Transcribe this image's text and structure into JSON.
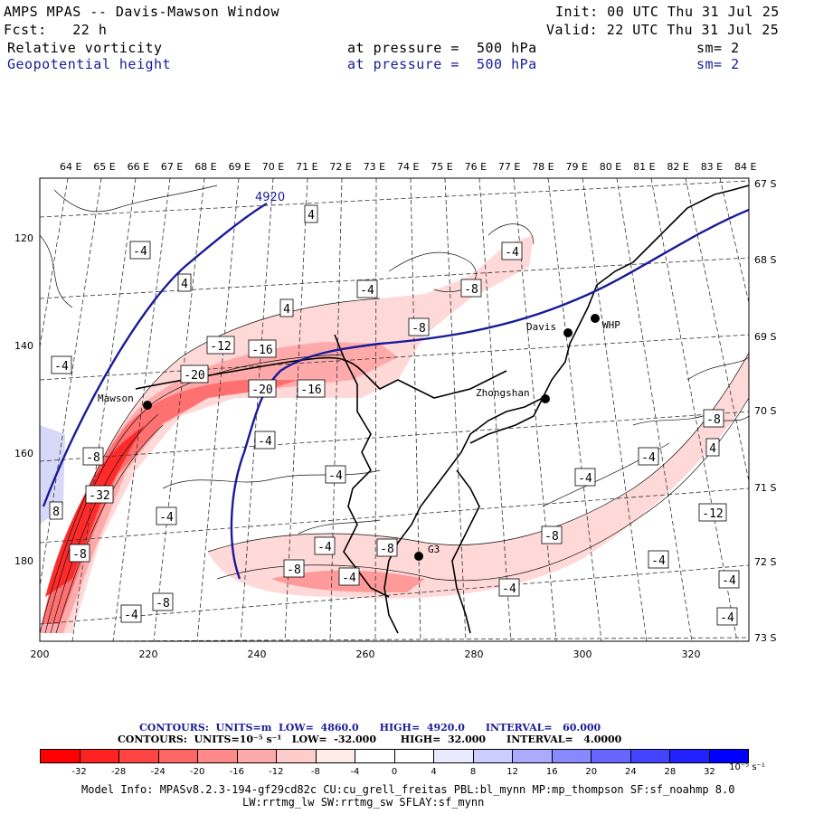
{
  "header": {
    "title": "AMPS MPAS -- Davis-Mawson Window",
    "forecast": "Fcst:   22 h",
    "init": "Init: 00 UTC Thu 31 Jul 25",
    "valid": "Valid: 22 UTC Thu 31 Jul 25",
    "field1": {
      "name": "Relative vorticity",
      "level": "at pressure =  500 hPa",
      "sm": "sm= 2"
    },
    "field2": {
      "name": "Geopotential height",
      "level": "at pressure =  500 hPa",
      "sm": "sm= 2"
    }
  },
  "axes": {
    "lon_labels": [
      "64 E",
      "65 E",
      "66 E",
      "67 E",
      "68 E",
      "69 E",
      "70 E",
      "71 E",
      "72 E",
      "73 E",
      "74 E",
      "75 E",
      "76 E",
      "77 E",
      "78 E",
      "79 E",
      "80 E",
      "81 E",
      "82 E",
      "83 E",
      "84 E"
    ],
    "lat_labels": [
      "67 S",
      "68 S",
      "69 S",
      "70 S",
      "71 S",
      "72 S",
      "73 S"
    ],
    "x_ticks": [
      "200",
      "220",
      "240",
      "260",
      "280",
      "300",
      "320"
    ],
    "y_ticks": [
      "120",
      "140",
      "160",
      "180"
    ]
  },
  "stations": {
    "mawson": "Mawson",
    "davis": "Davis",
    "whp": "WHP",
    "zhongshan": "Zhongshan",
    "g3": "G3"
  },
  "contour_labels": {
    "height": "4920",
    "vort": [
      "4",
      "-4",
      "4",
      "4",
      "-4",
      "-4",
      "-8",
      "-4",
      "-8",
      "-12",
      "-16",
      "-20",
      "-20",
      "-16",
      "-4",
      "-4",
      "-4",
      "-4",
      "-8",
      "-8",
      "-32",
      "8",
      "-8",
      "-4",
      "-4",
      "-8",
      "-12",
      "-4",
      "-8",
      "-4",
      "-8",
      "-4",
      "-4",
      "-4",
      "4",
      "-8",
      "-4"
    ]
  },
  "contour_info": {
    "height": "CONTOURS:  UNITS=m  LOW=  4860.0      HIGH=  4920.0      INTERVAL=   60.000",
    "vort": "CONTOURS:  UNITS=10⁻⁵ s⁻¹   LOW=  -32.000       HIGH=  32.000      INTERVAL=   4.0000"
  },
  "colorbar": {
    "labels": [
      "-32",
      "-28",
      "-24",
      "-20",
      "-16",
      "-12",
      "-8",
      "-4",
      "0",
      "4",
      "8",
      "12",
      "16",
      "20",
      "24",
      "28",
      "32"
    ],
    "unit": "10⁻⁵ s⁻¹",
    "colors": [
      "#ff0000",
      "#ff2222",
      "#ff4444",
      "#ff6666",
      "#ff8888",
      "#ffaaaa",
      "#ffcccc",
      "#ffeaea",
      "#ffffff",
      "#ffffff",
      "#eaeaff",
      "#ccccff",
      "#aaaaff",
      "#8888ff",
      "#6666ff",
      "#4444ff",
      "#2222ff",
      "#0000ff"
    ]
  },
  "model_info": {
    "line1": "Model Info: MPASv8.2.3-194-gf29cd82c CU:cu_grell_freitas PBL:bl_mynn MP:mp_thompson SF:sf_noahmp 8.0",
    "line2": "LW:rrtmg_lw SW:rrtmg_sw SFLAY:sf_mynn"
  }
}
